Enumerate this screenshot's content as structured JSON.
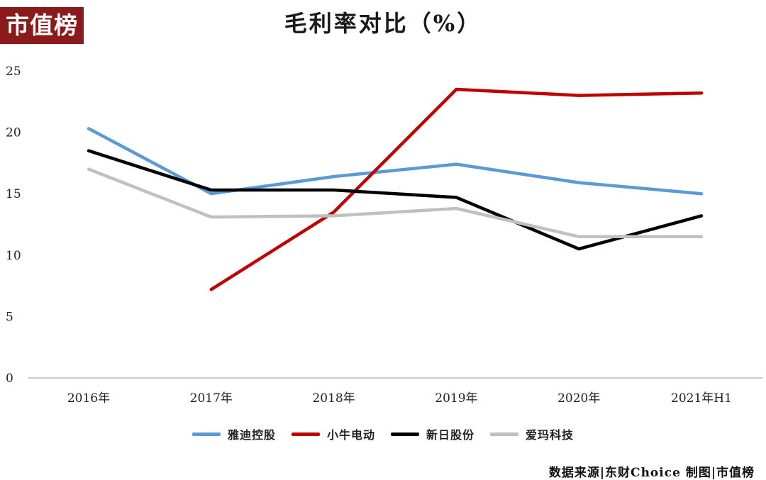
{
  "brand": "市值榜",
  "source_note": "数据来源|东财Choice  制图|市值榜",
  "colors": {
    "brand": "#8b1a1a",
    "axis": "#999999"
  },
  "chart_data": {
    "type": "line",
    "title": "毛利率对比（%）",
    "xlabel": "",
    "ylabel": "",
    "categories": [
      "2016年",
      "2017年",
      "2018年",
      "2019年",
      "2020年",
      "2021年H1"
    ],
    "ylim": [
      0,
      25
    ],
    "yticks": [
      0,
      5,
      10,
      15,
      20,
      25
    ],
    "grid": false,
    "legend_position": "bottom",
    "series": [
      {
        "name": "雅迪控股",
        "color": "#5b9bd5",
        "values": [
          20.3,
          15.0,
          16.4,
          17.4,
          15.9,
          15.0
        ]
      },
      {
        "name": "小牛电动",
        "color": "#c00000",
        "values": [
          null,
          7.2,
          13.5,
          23.5,
          23.0,
          23.2
        ]
      },
      {
        "name": "新日股份",
        "color": "#000000",
        "values": [
          18.5,
          15.3,
          15.3,
          14.7,
          10.5,
          13.2
        ]
      },
      {
        "name": "爱玛科技",
        "color": "#c0c0c0",
        "values": [
          17.0,
          13.1,
          13.2,
          13.8,
          11.5,
          11.5
        ]
      }
    ]
  }
}
